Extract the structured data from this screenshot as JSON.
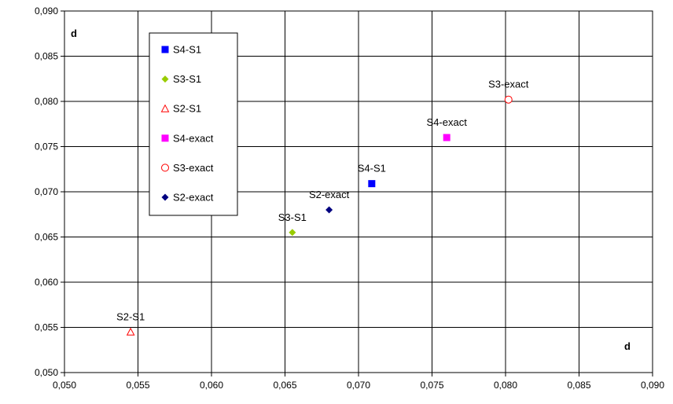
{
  "chart_data": {
    "type": "scatter",
    "xlabel": "d",
    "ylabel": "d",
    "xlim": [
      0.05,
      0.09
    ],
    "ylim": [
      0.05,
      0.09
    ],
    "x_ticks": [
      "0,050",
      "0,055",
      "0,060",
      "0,065",
      "0,070",
      "0,075",
      "0,080",
      "0,085",
      "0,090"
    ],
    "y_ticks": [
      "0,090",
      "0,085",
      "0,080",
      "0,075",
      "0,070",
      "0,065",
      "0,060",
      "0,055",
      "0,050"
    ],
    "grid": true,
    "legend_position": "top-left inside plot",
    "series": [
      {
        "name": "S4-S1",
        "marker": "square",
        "color": "#0000FF",
        "x": 0.0709,
        "y": 0.0709,
        "label": "S4-S1"
      },
      {
        "name": "S3-S1",
        "marker": "diamond",
        "color": "#99CC00",
        "x": 0.0655,
        "y": 0.0655,
        "label": "S3-S1"
      },
      {
        "name": "S2-S1",
        "marker": "triangle-open",
        "color": "#FF0000",
        "x": 0.0545,
        "y": 0.0545,
        "label": "S2-S1"
      },
      {
        "name": "S4-exact",
        "marker": "square",
        "color": "#FF00FF",
        "x": 0.076,
        "y": 0.076,
        "label": "S4-exact"
      },
      {
        "name": "S3-exact",
        "marker": "circle-open",
        "color": "#FF0000",
        "x": 0.0802,
        "y": 0.0802,
        "label": "S3-exact"
      },
      {
        "name": "S2-exact",
        "marker": "diamond",
        "color": "#000080",
        "x": 0.068,
        "y": 0.068,
        "label": "S2-exact"
      }
    ]
  }
}
